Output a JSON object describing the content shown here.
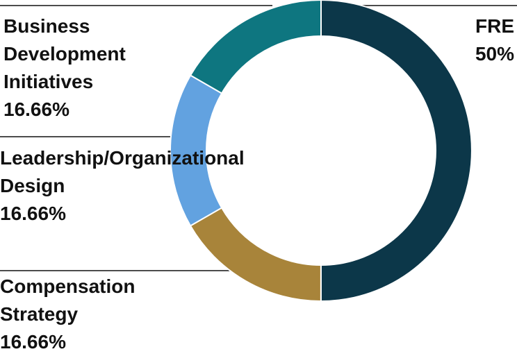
{
  "chart_data": {
    "type": "donut",
    "categories": [
      "FRE",
      "Compensation Strategy",
      "Leadership/Organizational Design",
      "Business Development Initiatives"
    ],
    "values": [
      50,
      16.66,
      16.66,
      16.66
    ],
    "value_labels": [
      "50%",
      "16.66%",
      "16.66%",
      "16.66%"
    ],
    "colors": [
      "#0c3749",
      "#a8843a",
      "#62a2e0",
      "#0e7680"
    ]
  }
}
